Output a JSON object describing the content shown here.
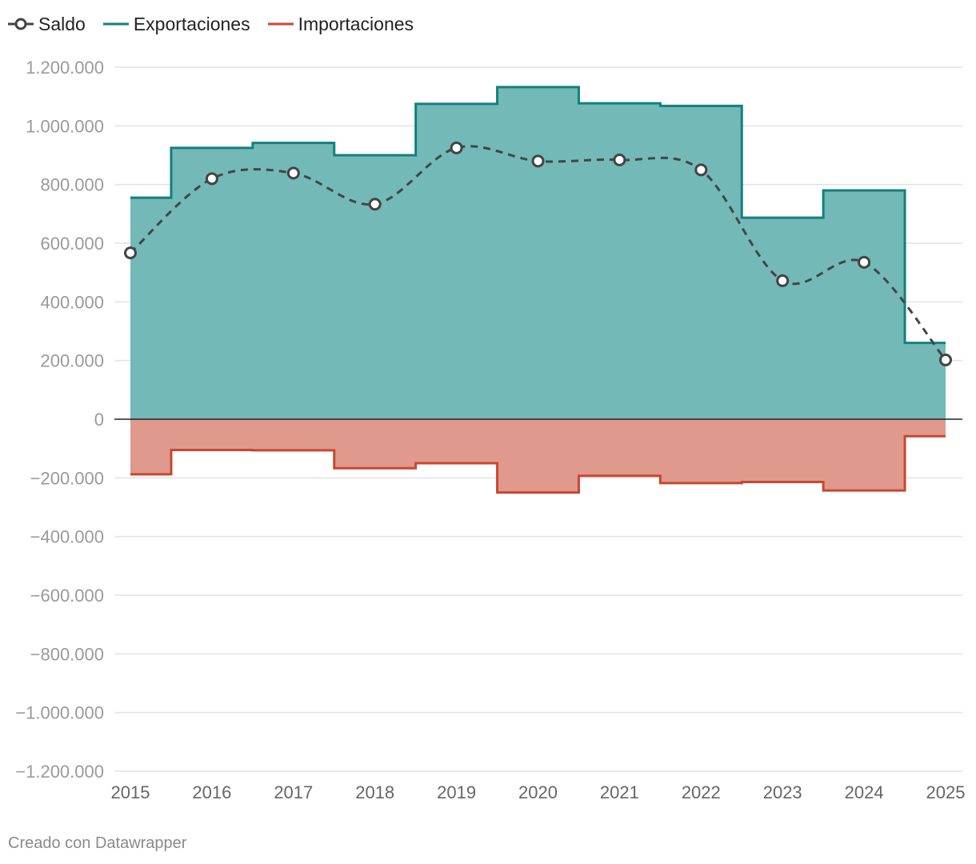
{
  "legend": {
    "saldo": "Saldo",
    "exportaciones": "Exportaciones",
    "importaciones": "Importaciones"
  },
  "footer": {
    "credit": "Creado con Datawrapper"
  },
  "colors": {
    "exportaciones_line": "#12807d",
    "exportaciones_fill": "#73b9b8",
    "importaciones_line": "#c9472f",
    "importaciones_fill": "#e0998d",
    "saldo_line": "#444444",
    "grid": "#e2e2e2",
    "axis_text": "#9a9a9a",
    "zero_line": "#222222"
  },
  "chart_data": {
    "type": "area",
    "title": "",
    "xlabel": "",
    "ylabel": "",
    "x": [
      "2015",
      "2016",
      "2017",
      "2018",
      "2019",
      "2020",
      "2021",
      "2022",
      "2023",
      "2024",
      "2025"
    ],
    "ylim": [
      -1200000,
      1200000
    ],
    "yticks": [
      1200000,
      1000000,
      800000,
      600000,
      400000,
      200000,
      0,
      -200000,
      -400000,
      -600000,
      -800000,
      -1000000,
      -1200000
    ],
    "ytick_labels": [
      "1.200.000",
      "1.000.000",
      "800.000",
      "600.000",
      "400.000",
      "200.000",
      "0",
      "−200.000",
      "−400.000",
      "−600.000",
      "−800.000",
      "−1.000.000",
      "−1.200.000"
    ],
    "grid": true,
    "legend_position": "top-left",
    "series": [
      {
        "name": "Exportaciones",
        "style": "step-area",
        "values": [
          755000,
          925000,
          942000,
          900000,
          1075000,
          1132000,
          1077000,
          1068000,
          687000,
          780000,
          260000
        ]
      },
      {
        "name": "Importaciones",
        "style": "step-area",
        "values": [
          -188000,
          -105000,
          -106000,
          -167000,
          -150000,
          -250000,
          -193000,
          -218000,
          -214000,
          -243000,
          -58000
        ]
      },
      {
        "name": "Saldo",
        "style": "dashed-line-with-markers",
        "values": [
          567000,
          820000,
          839000,
          733000,
          925000,
          880000,
          884000,
          850000,
          472000,
          535000,
          202000
        ]
      }
    ]
  }
}
